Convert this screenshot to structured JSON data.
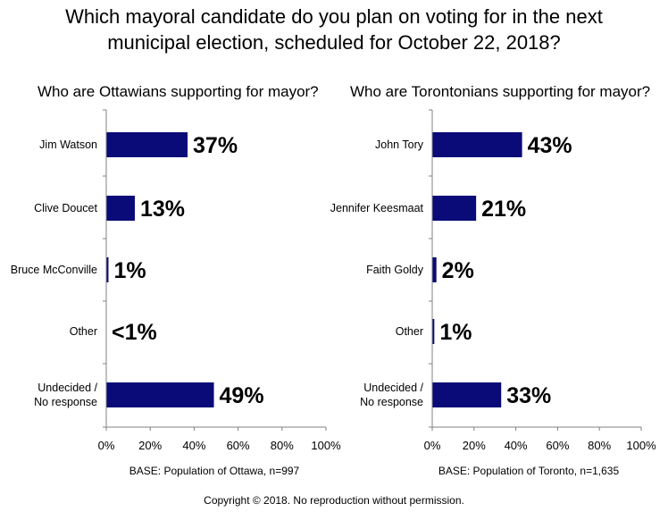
{
  "title_line1": "Which mayoral candidate do you plan on voting for in the next",
  "title_line2": "municipal election, scheduled for October 22, 2018?",
  "copyright": "Copyright © 2018. No reproduction  without permission.",
  "colors": {
    "bar": "#0a0a78",
    "axis": "#808080"
  },
  "chart_data": [
    {
      "type": "bar",
      "orientation": "horizontal",
      "title": "Who are Ottawians supporting for mayor?",
      "categories": [
        [
          "Jim Watson"
        ],
        [
          "Clive Doucet"
        ],
        [
          "Bruce McConville"
        ],
        [
          "Other"
        ],
        [
          "Undecided /",
          "No response"
        ]
      ],
      "values": [
        37,
        13,
        1,
        0,
        49
      ],
      "value_labels": [
        "37%",
        "13%",
        "1%",
        "<1%",
        "49%"
      ],
      "xlim": [
        0,
        100
      ],
      "xticks": [
        "0%",
        "20%",
        "40%",
        "60%",
        "80%",
        "100%"
      ],
      "base_note": "BASE: Population of Ottawa, n=997",
      "grid": false
    },
    {
      "type": "bar",
      "orientation": "horizontal",
      "title": "Who are Torontonians supporting for mayor?",
      "categories": [
        [
          "John Tory"
        ],
        [
          "Jennifer Keesmaat"
        ],
        [
          "Faith Goldy"
        ],
        [
          "Other"
        ],
        [
          "Undecided /",
          "No response"
        ]
      ],
      "values": [
        43,
        21,
        2,
        1,
        33
      ],
      "value_labels": [
        "43%",
        "21%",
        "2%",
        "1%",
        "33%"
      ],
      "xlim": [
        0,
        100
      ],
      "xticks": [
        "0%",
        "20%",
        "40%",
        "60%",
        "80%",
        "100%"
      ],
      "base_note": "BASE: Population of Toronto, n=1,635",
      "grid": false
    }
  ]
}
